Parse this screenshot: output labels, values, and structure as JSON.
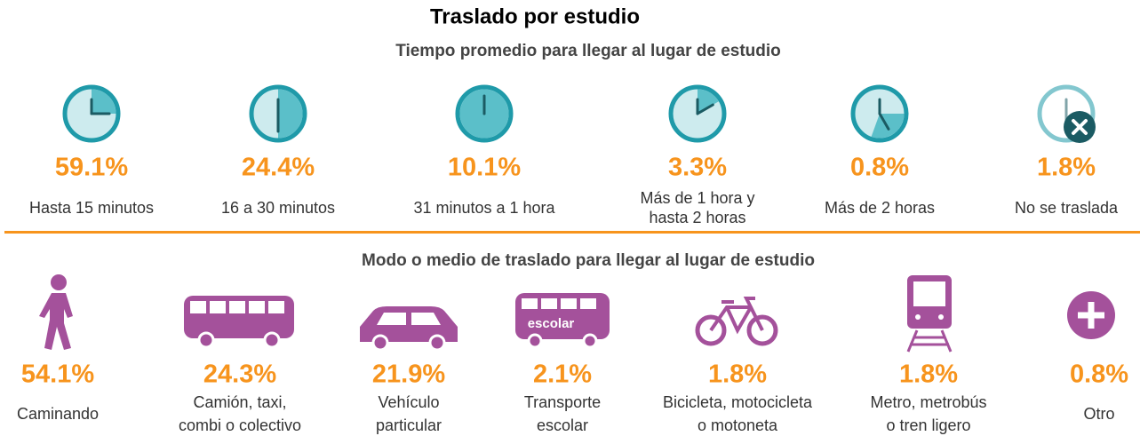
{
  "header": {
    "title": "Traslado por estudio"
  },
  "sections": [
    {
      "title": "Tiempo promedio para llegar al lugar de estudio",
      "items": [
        {
          "value": "59.1%",
          "label": [
            "Hasta 15 minutos"
          ]
        },
        {
          "value": "24.4%",
          "label": [
            "16 a 30 minutos"
          ]
        },
        {
          "value": "10.1%",
          "label": [
            "31 minutos a 1 hora"
          ]
        },
        {
          "value": "3.3%",
          "label": [
            "Más de 1 hora y",
            "hasta 2 horas"
          ]
        },
        {
          "value": "0.8%",
          "label": [
            "Más de 2 horas"
          ]
        },
        {
          "value": "1.8%",
          "label": [
            "No se traslada"
          ]
        }
      ]
    },
    {
      "title": "Modo o medio de traslado para llegar al lugar de estudio",
      "icon_text": "escolar",
      "items": [
        {
          "value": "54.1%",
          "label": [
            "Caminando"
          ]
        },
        {
          "value": "24.3%",
          "label": [
            "Camión, taxi,",
            "combi o colectivo"
          ]
        },
        {
          "value": "21.9%",
          "label": [
            "Vehículo",
            "particular"
          ]
        },
        {
          "value": "2.1%",
          "label": [
            "Transporte",
            "escolar"
          ]
        },
        {
          "value": "1.8%",
          "label": [
            "Bicicleta, motocicleta",
            "o motoneta"
          ]
        },
        {
          "value": "1.8%",
          "label": [
            "Metro, metrobús",
            "o tren ligero"
          ]
        },
        {
          "value": "0.8%",
          "label": [
            "Otro"
          ]
        }
      ]
    }
  ]
}
